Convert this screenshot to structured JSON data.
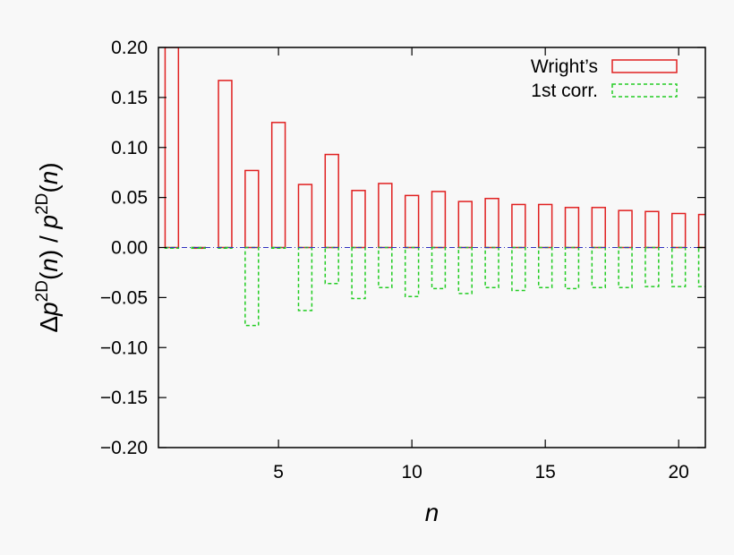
{
  "chart_data": {
    "type": "bar",
    "xlabel": "n",
    "ylabel": {
      "parts": [
        "Δ",
        "p",
        "2D",
        "(",
        "n",
        ")",
        " / ",
        "p",
        "2D",
        "(",
        "n",
        ")"
      ]
    },
    "xlim": [
      0.5,
      21
    ],
    "ylim": [
      -0.2,
      0.2
    ],
    "x_ticks": [
      5,
      10,
      15,
      20
    ],
    "x_tick_labels": [
      "5",
      "10",
      "15",
      "20"
    ],
    "y_ticks": [
      0.2,
      0.15,
      0.1,
      0.05,
      0.0,
      -0.05,
      -0.1,
      -0.15,
      -0.2
    ],
    "y_tick_labels": [
      "0.20",
      "0.15",
      "0.10",
      "0.05",
      "0.00",
      "−0.05",
      "−0.10",
      "−0.15",
      "−0.20"
    ],
    "legend_position": "top-right",
    "zero_line": {
      "color": "#3030c0",
      "style": "dash-dot"
    },
    "series": [
      {
        "name": "Wright’s",
        "color": "#e02020",
        "style": "solid",
        "x": [
          1,
          2,
          3,
          4,
          5,
          6,
          7,
          8,
          9,
          10,
          11,
          12,
          13,
          14,
          15,
          16,
          17,
          18,
          19,
          20,
          21
        ],
        "values": [
          0.2,
          0.0,
          0.167,
          0.077,
          0.125,
          0.063,
          0.093,
          0.057,
          0.064,
          0.052,
          0.056,
          0.046,
          0.049,
          0.043,
          0.043,
          0.04,
          0.04,
          0.037,
          0.036,
          0.034,
          0.033
        ]
      },
      {
        "name": "1st corr.",
        "color": "#22cc22",
        "style": "dashed",
        "x": [
          1,
          2,
          3,
          4,
          5,
          6,
          7,
          8,
          9,
          10,
          11,
          12,
          13,
          14,
          15,
          16,
          17,
          18,
          19,
          20,
          21
        ],
        "values": [
          0.0,
          0.0,
          0.0,
          -0.078,
          0.0,
          -0.063,
          -0.036,
          -0.051,
          -0.04,
          -0.049,
          -0.041,
          -0.046,
          -0.04,
          -0.043,
          -0.04,
          -0.041,
          -0.04,
          -0.04,
          -0.039,
          -0.039,
          -0.039
        ]
      }
    ]
  }
}
